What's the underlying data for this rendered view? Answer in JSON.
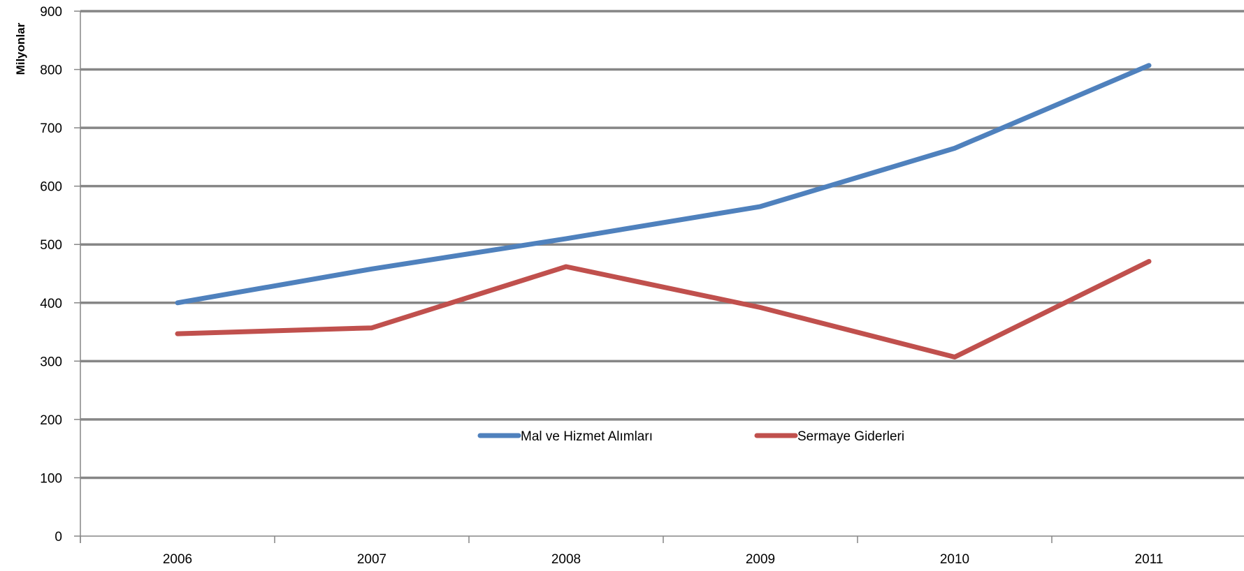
{
  "chart_data": {
    "type": "line",
    "categories": [
      "2006",
      "2007",
      "2008",
      "2009",
      "2010",
      "2011"
    ],
    "series": [
      {
        "name": "Mal ve Hizmet Alımları",
        "color": "#4F81BD",
        "values": [
          400,
          458,
          510,
          565,
          665,
          807
        ]
      },
      {
        "name": "Sermaye Giderleri",
        "color": "#C0504D",
        "values": [
          347,
          357,
          462,
          392,
          307,
          471
        ]
      }
    ],
    "ylabel": "Milyonlar",
    "xlabel": "",
    "ylim": [
      0,
      900
    ],
    "yticks": [
      0,
      100,
      200,
      300,
      400,
      500,
      600,
      700,
      800,
      900
    ],
    "grid": true,
    "gridline_color": "#868686",
    "legend_position": "center"
  }
}
